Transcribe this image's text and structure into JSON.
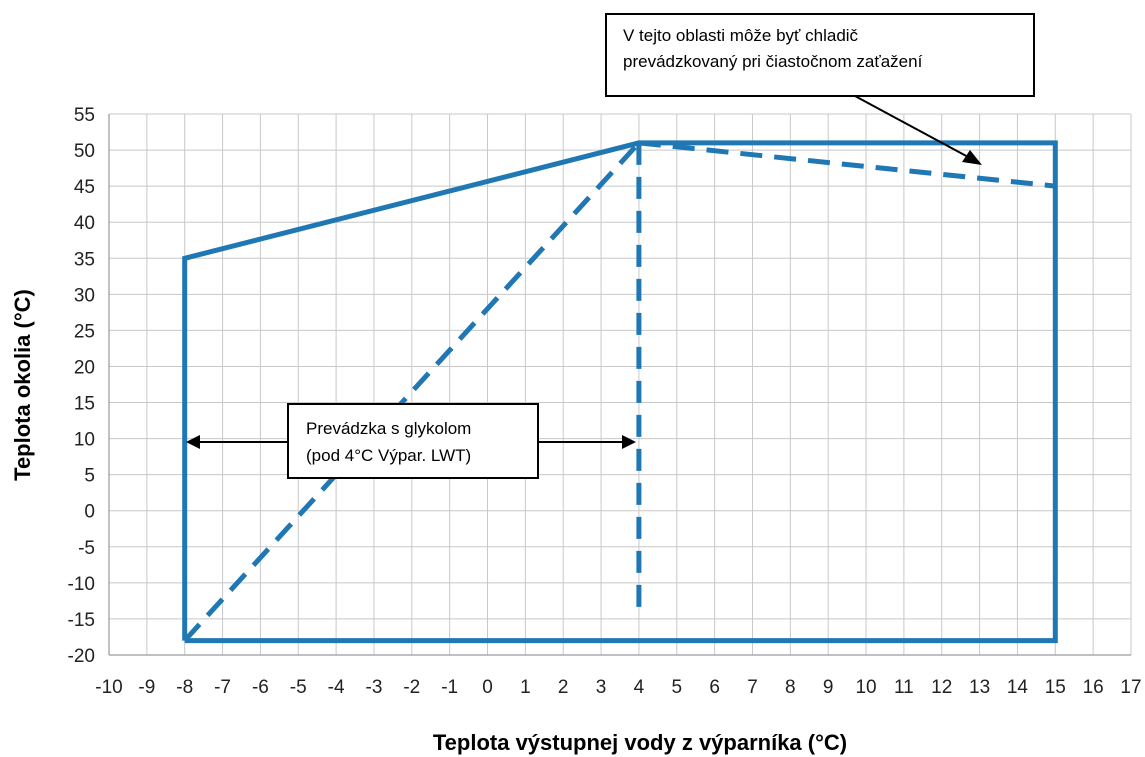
{
  "chart_data": {
    "type": "line",
    "xlabel": "Teplota výstupnej vody z výparníka (°C)",
    "ylabel": "Teplota okolia (°C)",
    "xlim": [
      -10,
      17
    ],
    "ylim": [
      -20,
      55
    ],
    "x_ticks": [
      "-10",
      "-9",
      "-8",
      "-7",
      "-6",
      "-5",
      "-4",
      "-3",
      "-2",
      "-1",
      "0",
      "1",
      "2",
      "3",
      "4",
      "5",
      "6",
      "7",
      "8",
      "9",
      "10",
      "11",
      "12",
      "13",
      "14",
      "15",
      "16",
      "17"
    ],
    "y_ticks": [
      "-20",
      "-15",
      "-10",
      "-5",
      "0",
      "5",
      "10",
      "15",
      "20",
      "25",
      "30",
      "35",
      "40",
      "45",
      "50",
      "55"
    ],
    "grid": true,
    "series": [
      {
        "style": "solid",
        "color": "#1f77b4",
        "points": [
          [
            -8,
            -18
          ],
          [
            15,
            -18
          ],
          [
            15,
            51
          ],
          [
            4,
            51
          ],
          [
            -8,
            35
          ],
          [
            -8,
            -18
          ]
        ]
      },
      {
        "style": "dashed",
        "color": "#1f77b4",
        "points": [
          [
            -8,
            -18
          ],
          [
            4,
            51
          ]
        ]
      },
      {
        "style": "dashed",
        "color": "#1f77b4",
        "points": [
          [
            4,
            51
          ],
          [
            4,
            -15
          ]
        ]
      },
      {
        "style": "dashed",
        "color": "#1f77b4",
        "points": [
          [
            4,
            51
          ],
          [
            15,
            45
          ]
        ]
      }
    ],
    "annotations": [
      {
        "lines": [
          "V tejto oblasti môže byť chladič",
          "prevádzkovaný pri čiastočnom zaťažení"
        ]
      },
      {
        "lines": [
          "Prevádzka s glykolom",
          "(pod 4°C Výpar. LWT)"
        ],
        "arrows_to_x": [
          -8,
          4
        ],
        "arrow_y": 9.5
      }
    ]
  }
}
